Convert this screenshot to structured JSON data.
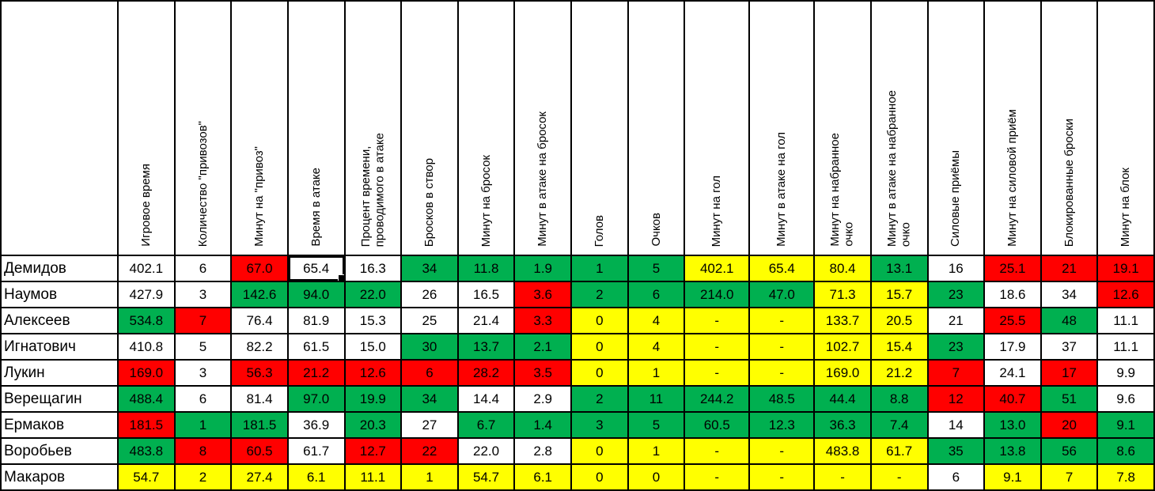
{
  "colors": {
    "green": "#00B050",
    "yellow": "#FFFF00",
    "red": "#FF0000",
    "white": "#FFFFFF"
  },
  "table": {
    "columns": [
      {
        "label": "Игровое время"
      },
      {
        "label": "Количество \"привозов\""
      },
      {
        "label": "Минут на \"привоз\""
      },
      {
        "label": "Время в атаке"
      },
      {
        "label": "Процент времени,\nпроводимого в атаке"
      },
      {
        "label": "Бросков в створ"
      },
      {
        "label": "Минут на бросок"
      },
      {
        "label": "Минут в атаке на бросок"
      },
      {
        "label": "Голов"
      },
      {
        "label": "Очков"
      },
      {
        "label": "Минут на гол"
      },
      {
        "label": "Минут в атаке на гол"
      },
      {
        "label": "Минут на набранное\nочко"
      },
      {
        "label": "Минут в атаке на набранное\nочко"
      },
      {
        "label": "Силовые приёмы"
      },
      {
        "label": "Минут на силовой приём"
      },
      {
        "label": "Блокированные броски"
      },
      {
        "label": "Минут на блок"
      }
    ],
    "active_cell": {
      "row": 0,
      "col": 3
    },
    "rows": [
      {
        "name": "Демидов",
        "cells": [
          {
            "v": "402.1",
            "f": "w"
          },
          {
            "v": "6",
            "f": "w"
          },
          {
            "v": "67.0",
            "f": "r"
          },
          {
            "v": "65.4",
            "f": "w"
          },
          {
            "v": "16.3",
            "f": "w"
          },
          {
            "v": "34",
            "f": "g"
          },
          {
            "v": "11.8",
            "f": "g"
          },
          {
            "v": "1.9",
            "f": "g"
          },
          {
            "v": "1",
            "f": "g"
          },
          {
            "v": "5",
            "f": "g"
          },
          {
            "v": "402.1",
            "f": "y"
          },
          {
            "v": "65.4",
            "f": "y"
          },
          {
            "v": "80.4",
            "f": "y"
          },
          {
            "v": "13.1",
            "f": "g"
          },
          {
            "v": "16",
            "f": "w"
          },
          {
            "v": "25.1",
            "f": "r"
          },
          {
            "v": "21",
            "f": "r"
          },
          {
            "v": "19.1",
            "f": "r"
          }
        ]
      },
      {
        "name": "Наумов",
        "cells": [
          {
            "v": "427.9",
            "f": "w"
          },
          {
            "v": "3",
            "f": "w"
          },
          {
            "v": "142.6",
            "f": "g"
          },
          {
            "v": "94.0",
            "f": "g"
          },
          {
            "v": "22.0",
            "f": "g"
          },
          {
            "v": "26",
            "f": "w"
          },
          {
            "v": "16.5",
            "f": "w"
          },
          {
            "v": "3.6",
            "f": "r"
          },
          {
            "v": "2",
            "f": "g"
          },
          {
            "v": "6",
            "f": "g"
          },
          {
            "v": "214.0",
            "f": "g"
          },
          {
            "v": "47.0",
            "f": "g"
          },
          {
            "v": "71.3",
            "f": "y"
          },
          {
            "v": "15.7",
            "f": "y"
          },
          {
            "v": "23",
            "f": "g"
          },
          {
            "v": "18.6",
            "f": "w"
          },
          {
            "v": "34",
            "f": "w"
          },
          {
            "v": "12.6",
            "f": "r"
          }
        ]
      },
      {
        "name": "Алексеев",
        "cells": [
          {
            "v": "534.8",
            "f": "g"
          },
          {
            "v": "7",
            "f": "r"
          },
          {
            "v": "76.4",
            "f": "w"
          },
          {
            "v": "81.9",
            "f": "w"
          },
          {
            "v": "15.3",
            "f": "w"
          },
          {
            "v": "25",
            "f": "w"
          },
          {
            "v": "21.4",
            "f": "w"
          },
          {
            "v": "3.3",
            "f": "r"
          },
          {
            "v": "0",
            "f": "y"
          },
          {
            "v": "4",
            "f": "y"
          },
          {
            "v": "-",
            "f": "y"
          },
          {
            "v": "-",
            "f": "y"
          },
          {
            "v": "133.7",
            "f": "y"
          },
          {
            "v": "20.5",
            "f": "y"
          },
          {
            "v": "21",
            "f": "w"
          },
          {
            "v": "25.5",
            "f": "r"
          },
          {
            "v": "48",
            "f": "g"
          },
          {
            "v": "11.1",
            "f": "w"
          }
        ]
      },
      {
        "name": "Игнатович",
        "cells": [
          {
            "v": "410.8",
            "f": "w"
          },
          {
            "v": "5",
            "f": "w"
          },
          {
            "v": "82.2",
            "f": "w"
          },
          {
            "v": "61.5",
            "f": "w"
          },
          {
            "v": "15.0",
            "f": "w"
          },
          {
            "v": "30",
            "f": "g"
          },
          {
            "v": "13.7",
            "f": "g"
          },
          {
            "v": "2.1",
            "f": "g"
          },
          {
            "v": "0",
            "f": "y"
          },
          {
            "v": "4",
            "f": "y"
          },
          {
            "v": "-",
            "f": "y"
          },
          {
            "v": "-",
            "f": "y"
          },
          {
            "v": "102.7",
            "f": "y"
          },
          {
            "v": "15.4",
            "f": "y"
          },
          {
            "v": "23",
            "f": "g"
          },
          {
            "v": "17.9",
            "f": "w"
          },
          {
            "v": "37",
            "f": "w"
          },
          {
            "v": "11.1",
            "f": "w"
          }
        ]
      },
      {
        "name": "Лукин",
        "cells": [
          {
            "v": "169.0",
            "f": "r"
          },
          {
            "v": "3",
            "f": "w"
          },
          {
            "v": "56.3",
            "f": "r"
          },
          {
            "v": "21.2",
            "f": "r"
          },
          {
            "v": "12.6",
            "f": "r"
          },
          {
            "v": "6",
            "f": "r"
          },
          {
            "v": "28.2",
            "f": "r"
          },
          {
            "v": "3.5",
            "f": "r"
          },
          {
            "v": "0",
            "f": "y"
          },
          {
            "v": "1",
            "f": "y"
          },
          {
            "v": "-",
            "f": "y"
          },
          {
            "v": "-",
            "f": "y"
          },
          {
            "v": "169.0",
            "f": "y"
          },
          {
            "v": "21.2",
            "f": "y"
          },
          {
            "v": "7",
            "f": "r"
          },
          {
            "v": "24.1",
            "f": "w"
          },
          {
            "v": "17",
            "f": "r"
          },
          {
            "v": "9.9",
            "f": "w"
          }
        ]
      },
      {
        "name": "Верещагин",
        "cells": [
          {
            "v": "488.4",
            "f": "g"
          },
          {
            "v": "6",
            "f": "w"
          },
          {
            "v": "81.4",
            "f": "w"
          },
          {
            "v": "97.0",
            "f": "g"
          },
          {
            "v": "19.9",
            "f": "g"
          },
          {
            "v": "34",
            "f": "g"
          },
          {
            "v": "14.4",
            "f": "w"
          },
          {
            "v": "2.9",
            "f": "w"
          },
          {
            "v": "2",
            "f": "g"
          },
          {
            "v": "11",
            "f": "g"
          },
          {
            "v": "244.2",
            "f": "g"
          },
          {
            "v": "48.5",
            "f": "g"
          },
          {
            "v": "44.4",
            "f": "g"
          },
          {
            "v": "8.8",
            "f": "g"
          },
          {
            "v": "12",
            "f": "r"
          },
          {
            "v": "40.7",
            "f": "r"
          },
          {
            "v": "51",
            "f": "g"
          },
          {
            "v": "9.6",
            "f": "w"
          }
        ]
      },
      {
        "name": "Ермаков",
        "cells": [
          {
            "v": "181.5",
            "f": "r"
          },
          {
            "v": "1",
            "f": "g"
          },
          {
            "v": "181.5",
            "f": "g"
          },
          {
            "v": "36.9",
            "f": "w"
          },
          {
            "v": "20.3",
            "f": "g"
          },
          {
            "v": "27",
            "f": "w"
          },
          {
            "v": "6.7",
            "f": "g"
          },
          {
            "v": "1.4",
            "f": "g"
          },
          {
            "v": "3",
            "f": "g"
          },
          {
            "v": "5",
            "f": "g"
          },
          {
            "v": "60.5",
            "f": "g"
          },
          {
            "v": "12.3",
            "f": "g"
          },
          {
            "v": "36.3",
            "f": "g"
          },
          {
            "v": "7.4",
            "f": "g"
          },
          {
            "v": "14",
            "f": "w"
          },
          {
            "v": "13.0",
            "f": "g"
          },
          {
            "v": "20",
            "f": "r"
          },
          {
            "v": "9.1",
            "f": "g"
          }
        ]
      },
      {
        "name": "Воробьев",
        "cells": [
          {
            "v": "483.8",
            "f": "g"
          },
          {
            "v": "8",
            "f": "r"
          },
          {
            "v": "60.5",
            "f": "r"
          },
          {
            "v": "61.7",
            "f": "w"
          },
          {
            "v": "12.7",
            "f": "r"
          },
          {
            "v": "22",
            "f": "r"
          },
          {
            "v": "22.0",
            "f": "w"
          },
          {
            "v": "2.8",
            "f": "w"
          },
          {
            "v": "0",
            "f": "y"
          },
          {
            "v": "1",
            "f": "y"
          },
          {
            "v": "-",
            "f": "y"
          },
          {
            "v": "-",
            "f": "y"
          },
          {
            "v": "483.8",
            "f": "y"
          },
          {
            "v": "61.7",
            "f": "y"
          },
          {
            "v": "35",
            "f": "g"
          },
          {
            "v": "13.8",
            "f": "g"
          },
          {
            "v": "56",
            "f": "g"
          },
          {
            "v": "8.6",
            "f": "g"
          }
        ]
      },
      {
        "name": "Макаров",
        "cells": [
          {
            "v": "54.7",
            "f": "y"
          },
          {
            "v": "2",
            "f": "y"
          },
          {
            "v": "27.4",
            "f": "y"
          },
          {
            "v": "6.1",
            "f": "y"
          },
          {
            "v": "11.1",
            "f": "y"
          },
          {
            "v": "1",
            "f": "y"
          },
          {
            "v": "54.7",
            "f": "y"
          },
          {
            "v": "6.1",
            "f": "y"
          },
          {
            "v": "0",
            "f": "y"
          },
          {
            "v": "0",
            "f": "y"
          },
          {
            "v": "-",
            "f": "y"
          },
          {
            "v": "-",
            "f": "y"
          },
          {
            "v": "-",
            "f": "y"
          },
          {
            "v": "-",
            "f": "y"
          },
          {
            "v": "6",
            "f": "w"
          },
          {
            "v": "9.1",
            "f": "y"
          },
          {
            "v": "7",
            "f": "y"
          },
          {
            "v": "7.8",
            "f": "y"
          }
        ]
      }
    ]
  }
}
